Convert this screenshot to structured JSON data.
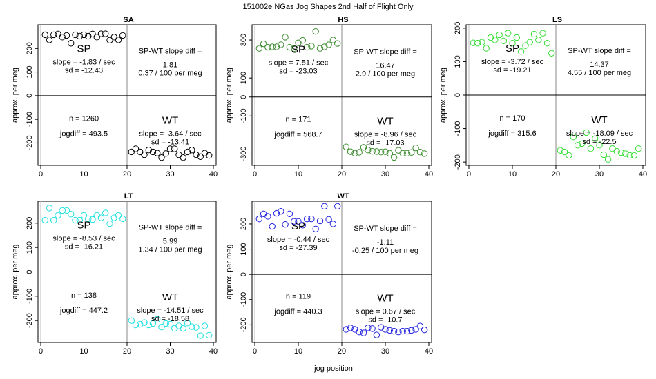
{
  "figure": {
    "title": "151002e    NGas Jog Shapes 2nd Half of Flight Only",
    "xlabel": "jog position"
  },
  "chart_data": [
    {
      "type": "scatter",
      "title": "SA",
      "color": "#000000",
      "xlabel": "jog position",
      "ylabel": "approx. per meg",
      "xlim": [
        0,
        40
      ],
      "ylim": [
        -295,
        300
      ],
      "xticks": [
        0,
        10,
        20,
        30,
        40
      ],
      "yticks": [
        -200,
        -100,
        0,
        100,
        200
      ],
      "x": [
        1,
        2,
        3,
        4,
        5,
        6,
        7,
        8,
        9,
        10,
        11,
        12,
        13,
        14,
        15,
        16,
        17,
        18,
        19,
        21,
        22,
        23,
        24,
        25,
        26,
        27,
        28,
        29,
        30,
        31,
        32,
        33,
        34,
        35,
        36,
        37,
        38,
        39
      ],
      "y": [
        258,
        236,
        258,
        261,
        248,
        255,
        222,
        258,
        252,
        258,
        252,
        261,
        248,
        262,
        262,
        235,
        248,
        236,
        255,
        -238,
        -225,
        -238,
        -250,
        -230,
        -238,
        -243,
        -262,
        -245,
        -225,
        -225,
        -250,
        -262,
        -238,
        -230,
        -250,
        -258,
        -243,
        -253
      ],
      "sp": {
        "label": "SP",
        "slope": "slope = -1.83 / sec",
        "sd": "sd = -12.43"
      },
      "wt": {
        "label": "WT",
        "slope": "slope = -3.64 / sec",
        "sd": "sd = -13.41"
      },
      "diff": {
        "label": "SP-WT slope diff =",
        "value": "1.81",
        "per_meg": "0.37 / 100 per meg"
      },
      "n": "n = 1260",
      "jogdiff": "jogdiff = 493.5"
    },
    {
      "type": "scatter",
      "title": "HS",
      "color": "#3b8b2e",
      "xlabel": "jog position",
      "ylabel": "approx. per meg",
      "xlim": [
        0,
        40
      ],
      "ylim": [
        -360,
        380
      ],
      "xticks": [
        0,
        10,
        20,
        30,
        40
      ],
      "yticks": [
        -300,
        -100,
        0,
        100,
        300
      ],
      "x": [
        1,
        2,
        3,
        4,
        5,
        6,
        7,
        8,
        9,
        10,
        11,
        12,
        13,
        14,
        15,
        16,
        17,
        18,
        19,
        21,
        22,
        23,
        24,
        25,
        26,
        27,
        28,
        29,
        30,
        31,
        32,
        33,
        34,
        35,
        36,
        37,
        38,
        39
      ],
      "y": [
        256,
        280,
        262,
        264,
        264,
        275,
        315,
        262,
        255,
        285,
        298,
        262,
        268,
        345,
        256,
        264,
        275,
        300,
        282,
        -263,
        -288,
        -296,
        -291,
        -265,
        -279,
        -286,
        -287,
        -290,
        -288,
        -296,
        -318,
        -281,
        -296,
        -296,
        -292,
        -268,
        -290,
        -298
      ],
      "sp": {
        "label": "SP",
        "slope": "slope = 7.51 / sec",
        "sd": "sd = -23.03"
      },
      "wt": {
        "label": "WT",
        "slope": "slope = -8.96 / sec",
        "sd": "sd = -17.03"
      },
      "diff": {
        "label": "SP-WT slope diff =",
        "value": "16.47",
        "per_meg": "2.9 / 100 per meg"
      },
      "n": "n = 171",
      "jogdiff": "jogdiff = 568.7"
    },
    {
      "type": "scatter",
      "title": "LS",
      "color": "#33dd33",
      "xlabel": "jog position",
      "ylabel": "approx. per meg",
      "xlim": [
        0,
        40
      ],
      "ylim": [
        -210,
        210
      ],
      "xticks": [
        0,
        10,
        20,
        30,
        40
      ],
      "yticks": [
        -200,
        -100,
        0,
        100,
        200
      ],
      "x": [
        1,
        2,
        3,
        4,
        5,
        6,
        7,
        8,
        9,
        10,
        11,
        12,
        13,
        14,
        15,
        16,
        17,
        18,
        19,
        21,
        22,
        23,
        24,
        25,
        26,
        27,
        28,
        29,
        30,
        31,
        32,
        33,
        34,
        35,
        36,
        37,
        38,
        39
      ],
      "y": [
        156,
        155,
        158,
        140,
        172,
        165,
        180,
        162,
        185,
        155,
        172,
        130,
        148,
        158,
        182,
        165,
        185,
        155,
        125,
        -165,
        -170,
        -180,
        -125,
        -150,
        -145,
        -112,
        -160,
        -130,
        -150,
        -178,
        -192,
        -160,
        -168,
        -172,
        -175,
        -180,
        -180,
        -160
      ],
      "sp": {
        "label": "SP",
        "slope": "slope = -3.72 / sec",
        "sd": "sd = -19.21"
      },
      "wt": {
        "label": "WT",
        "slope": "slope = -18.09 / sec",
        "sd": "sd = -22.5"
      },
      "diff": {
        "label": "SP-WT slope diff =",
        "value": "14.37",
        "per_meg": "4.55 / 100 per meg"
      },
      "n": "n = 170",
      "jogdiff": "jogdiff = 315.6"
    },
    {
      "type": "scatter",
      "title": "LT",
      "color": "#22e0e0",
      "xlabel": "jog position",
      "ylabel": "approx. per meg",
      "xlim": [
        0,
        40
      ],
      "ylim": [
        -290,
        290
      ],
      "xticks": [
        0,
        10,
        20,
        30,
        40
      ],
      "yticks": [
        -200,
        -100,
        0,
        100,
        200
      ],
      "x": [
        1,
        2,
        3,
        4,
        5,
        6,
        7,
        8,
        9,
        10,
        11,
        12,
        13,
        14,
        15,
        16,
        17,
        18,
        19,
        21,
        22,
        23,
        24,
        25,
        26,
        27,
        28,
        29,
        30,
        31,
        32,
        33,
        34,
        35,
        36,
        37,
        38,
        39
      ],
      "y": [
        212,
        262,
        212,
        232,
        252,
        252,
        237,
        212,
        212,
        232,
        218,
        215,
        232,
        222,
        242,
        198,
        222,
        232,
        218,
        -200,
        -218,
        -215,
        -208,
        -218,
        -212,
        -195,
        -227,
        -212,
        -215,
        -232,
        -222,
        -232,
        -210,
        -225,
        -228,
        -262,
        -222,
        -260
      ],
      "sp": {
        "label": "SP",
        "slope": "slope = -8.53 / sec",
        "sd": "sd = -16.21"
      },
      "wt": {
        "label": "WT",
        "slope": "slope = -14.51 / sec",
        "sd": "sd = -18.58"
      },
      "diff": {
        "label": "SP-WT slope diff =",
        "value": "5.99",
        "per_meg": "1.34 / 100 per meg"
      },
      "n": "n = 138",
      "jogdiff": "jogdiff = 447.2"
    },
    {
      "type": "scatter",
      "title": "WT",
      "color": "#2222dd",
      "xlabel": "jog position",
      "ylabel": "approx. per meg",
      "xlim": [
        0,
        40
      ],
      "ylim": [
        -270,
        290
      ],
      "xticks": [
        0,
        10,
        20,
        30,
        40
      ],
      "yticks": [
        -200,
        -100,
        0,
        100,
        200
      ],
      "x": [
        1,
        2,
        3,
        4,
        5,
        6,
        7,
        8,
        9,
        10,
        11,
        12,
        13,
        14,
        15,
        16,
        17,
        18,
        19,
        21,
        22,
        23,
        24,
        25,
        26,
        27,
        28,
        29,
        30,
        31,
        32,
        33,
        34,
        35,
        36,
        37,
        38,
        39
      ],
      "y": [
        220,
        240,
        230,
        190,
        242,
        250,
        198,
        240,
        210,
        210,
        195,
        220,
        220,
        180,
        212,
        270,
        218,
        200,
        270,
        -218,
        -212,
        -218,
        -228,
        -232,
        -212,
        -215,
        -240,
        -210,
        -218,
        -222,
        -225,
        -228,
        -225,
        -225,
        -222,
        -218,
        -205,
        -220
      ],
      "sp": {
        "label": "SP",
        "slope": "slope = -0.44 / sec",
        "sd": "sd = -27.39"
      },
      "wt": {
        "label": "WT",
        "slope": "slope = 0.67 / sec",
        "sd": "sd = -10.7"
      },
      "diff": {
        "label": "SP-WT slope diff =",
        "value": "-1.11",
        "per_meg": "-0.25 / 100 per meg"
      },
      "n": "n = 119",
      "jogdiff": "jogdiff = 440.3"
    }
  ]
}
